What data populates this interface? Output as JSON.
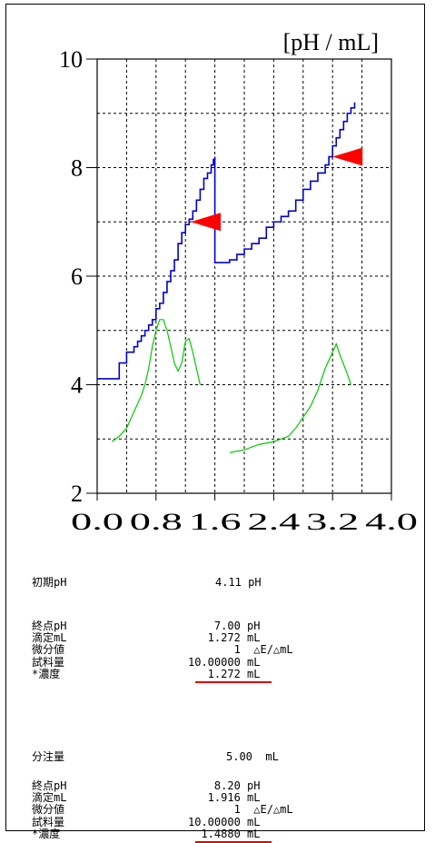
{
  "chart_data": {
    "type": "line",
    "unit_label": "[pH / mL]",
    "xlim": [
      0,
      4.0
    ],
    "ylim": [
      2,
      10
    ],
    "grid": true,
    "x_ticks": [
      "0.0",
      "0.8",
      "1.6",
      "2.4",
      "3.2",
      "4.0"
    ],
    "y_ticks": [
      "2",
      "4",
      "6",
      "8",
      "10"
    ],
    "series": [
      {
        "color": "#0000cc",
        "step": true,
        "points": [
          [
            0.0,
            4.11
          ],
          [
            0.3,
            4.11
          ],
          [
            0.3,
            4.4
          ],
          [
            0.4,
            4.4
          ],
          [
            0.4,
            4.6
          ],
          [
            0.5,
            4.7
          ],
          [
            0.55,
            4.8
          ],
          [
            0.6,
            4.9
          ],
          [
            0.65,
            5.0
          ],
          [
            0.7,
            5.1
          ],
          [
            0.75,
            5.2
          ],
          [
            0.8,
            5.4
          ],
          [
            0.85,
            5.5
          ],
          [
            0.9,
            5.7
          ],
          [
            0.95,
            5.9
          ],
          [
            1.0,
            6.1
          ],
          [
            1.05,
            6.3
          ],
          [
            1.1,
            6.6
          ],
          [
            1.15,
            6.8
          ],
          [
            1.2,
            6.95
          ],
          [
            1.25,
            7.05
          ],
          [
            1.3,
            7.2
          ],
          [
            1.35,
            7.4
          ],
          [
            1.4,
            7.6
          ],
          [
            1.45,
            7.8
          ],
          [
            1.5,
            7.9
          ],
          [
            1.55,
            8.05
          ],
          [
            1.58,
            8.15
          ],
          [
            1.6,
            8.2
          ],
          [
            1.6,
            6.25
          ],
          [
            1.7,
            6.25
          ],
          [
            1.8,
            6.3
          ],
          [
            1.9,
            6.4
          ],
          [
            2.0,
            6.5
          ],
          [
            2.1,
            6.6
          ],
          [
            2.2,
            6.7
          ],
          [
            2.3,
            6.9
          ],
          [
            2.4,
            7.0
          ],
          [
            2.5,
            7.1
          ],
          [
            2.6,
            7.2
          ],
          [
            2.7,
            7.4
          ],
          [
            2.8,
            7.6
          ],
          [
            2.9,
            7.75
          ],
          [
            3.0,
            7.9
          ],
          [
            3.1,
            8.05
          ],
          [
            3.15,
            8.2
          ],
          [
            3.2,
            8.4
          ],
          [
            3.25,
            8.55
          ],
          [
            3.3,
            8.7
          ],
          [
            3.35,
            8.85
          ],
          [
            3.4,
            9.0
          ],
          [
            3.45,
            9.1
          ],
          [
            3.5,
            9.2
          ]
        ]
      },
      {
        "color": "#00cc00",
        "step": false,
        "points": [
          [
            0.2,
            2.95
          ],
          [
            0.3,
            3.05
          ],
          [
            0.4,
            3.2
          ],
          [
            0.5,
            3.5
          ],
          [
            0.6,
            3.8
          ],
          [
            0.65,
            4.0
          ],
          [
            0.7,
            4.3
          ],
          [
            0.75,
            4.7
          ],
          [
            0.8,
            5.0
          ],
          [
            0.85,
            5.2
          ],
          [
            0.9,
            5.2
          ],
          [
            0.95,
            5.0
          ],
          [
            1.0,
            4.7
          ],
          [
            1.05,
            4.4
          ],
          [
            1.1,
            4.25
          ],
          [
            1.15,
            4.4
          ],
          [
            1.2,
            4.8
          ],
          [
            1.25,
            4.85
          ],
          [
            1.3,
            4.6
          ],
          [
            1.35,
            4.3
          ],
          [
            1.4,
            4.0
          ]
        ]
      },
      {
        "color": "#00cc00",
        "step": false,
        "points": [
          [
            1.8,
            2.75
          ],
          [
            2.0,
            2.8
          ],
          [
            2.2,
            2.9
          ],
          [
            2.4,
            2.95
          ],
          [
            2.6,
            3.05
          ],
          [
            2.7,
            3.2
          ],
          [
            2.8,
            3.4
          ],
          [
            2.9,
            3.6
          ],
          [
            3.0,
            3.9
          ],
          [
            3.1,
            4.3
          ],
          [
            3.2,
            4.6
          ],
          [
            3.25,
            4.75
          ],
          [
            3.3,
            4.55
          ],
          [
            3.4,
            4.2
          ],
          [
            3.45,
            4.0
          ]
        ]
      }
    ],
    "markers": [
      {
        "x": 1.272,
        "y": 7.0,
        "color": "#ff0000"
      },
      {
        "x": 3.2,
        "y": 8.2,
        "color": "#ff0000"
      }
    ]
  },
  "report": {
    "initial_label": "初期pH",
    "initial_value": "4.11 pH",
    "block1": [
      {
        "label": "終点pH",
        "value": "    7.00 pH"
      },
      {
        "label": "滴定mL",
        "value": "   1.272 mL"
      },
      {
        "label": "微分値",
        "value": "       1  △E/△mL"
      },
      {
        "label": "試料量",
        "value": "10.00000 mL"
      },
      {
        "label": "*濃度",
        "value": "   1.272 mL"
      }
    ],
    "dispense_label": "分注量",
    "dispense_value": "5.00  mL",
    "block2": [
      {
        "label": "終点pH",
        "value": "    8.20 pH"
      },
      {
        "label": "滴定mL",
        "value": "   1.916 mL"
      },
      {
        "label": "微分値",
        "value": "       1  △E/△mL"
      },
      {
        "label": "試料量",
        "value": "10.00000 mL"
      },
      {
        "label": "*濃度",
        "value": "  1.4880 mL"
      }
    ],
    "underline_color": "#e00000"
  }
}
